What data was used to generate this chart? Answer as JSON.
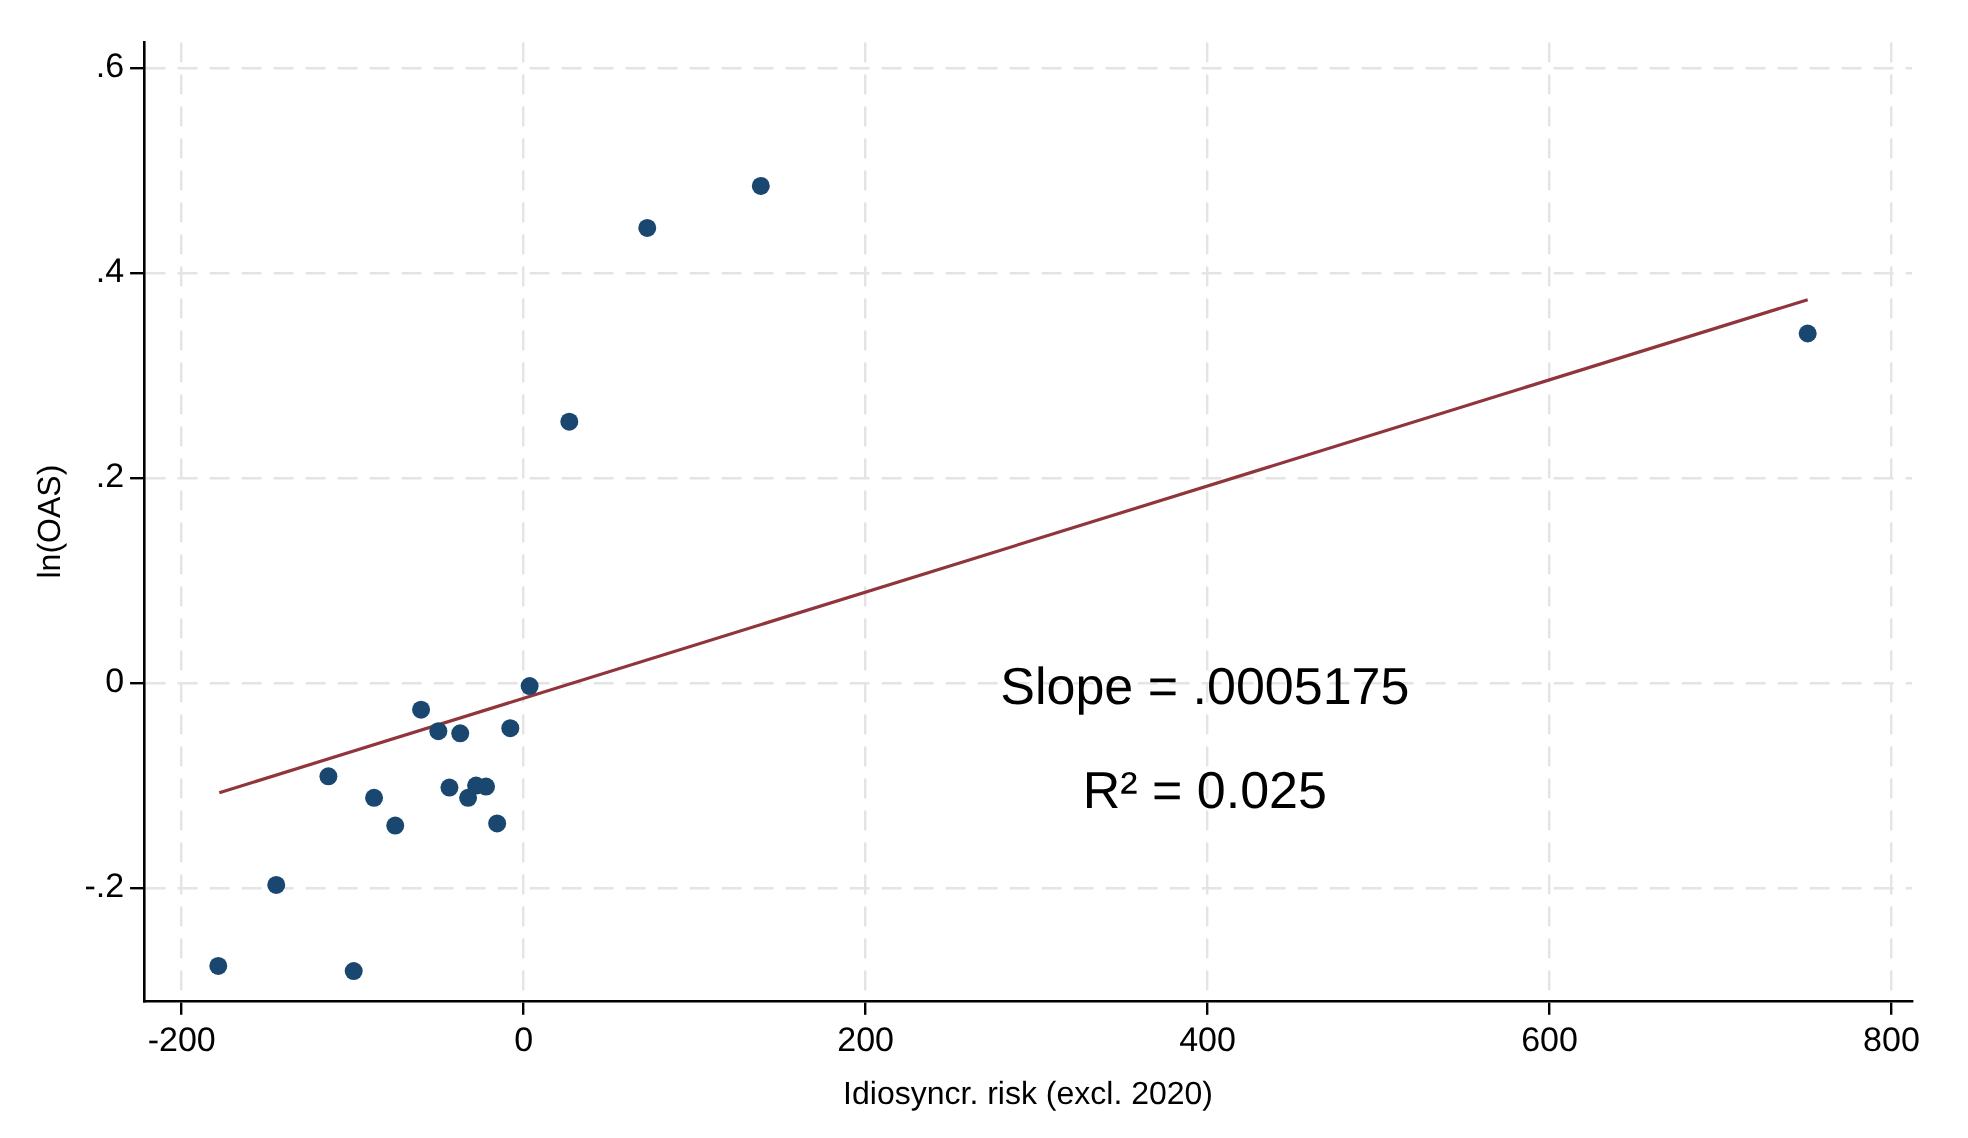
{
  "chart_data": {
    "type": "scatter",
    "xlabel": "Idiosyncr. risk (excl. 2020)",
    "ylabel": "ln(OAS)",
    "xlim": [
      -222,
      812
    ],
    "ylim": [
      -0.31,
      0.625
    ],
    "xticks": [
      -200,
      0,
      200,
      400,
      600,
      800
    ],
    "yticks": [
      {
        "value": -0.2,
        "label": "-.2"
      },
      0,
      {
        "value": 0.2,
        "label": ".2"
      },
      {
        "value": 0.4,
        "label": ".4"
      },
      {
        "value": 0.6,
        "label": ".6"
      }
    ],
    "grid": true,
    "annotations": [
      "Slope = .0005175",
      "R² = 0.025"
    ],
    "series": [
      {
        "marker": "circle",
        "color": "#1a476f",
        "x": [
          -178.6,
          -144.7,
          -114.2,
          -99.4,
          -87.5,
          -75.1,
          -60,
          -49.9,
          -43.4,
          -37.1,
          -32.5,
          -27.8,
          -22,
          -15.5,
          -7.8,
          3.5,
          26.7,
          72.3,
          138.7,
          751
        ],
        "values": [
          -0.276,
          -0.197,
          -0.091,
          -0.281,
          -0.112,
          -0.139,
          -0.026,
          -0.047,
          -0.102,
          -0.049,
          -0.112,
          -0.1,
          -0.101,
          -0.137,
          -0.044,
          -0.003,
          0.255,
          0.444,
          0.485,
          0.341
        ]
      },
      {
        "type": "line",
        "marker": "none",
        "color": "#90353b",
        "line_style": "solid",
        "x": [
          -178,
          751
        ],
        "values": [
          -0.107,
          0.374
        ]
      }
    ]
  }
}
